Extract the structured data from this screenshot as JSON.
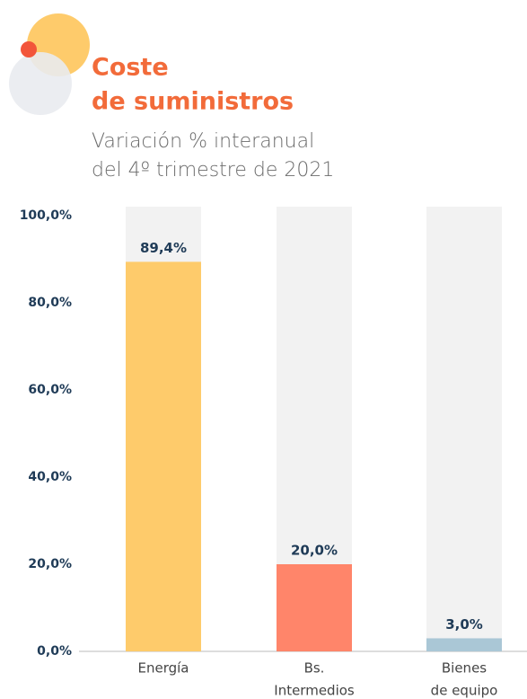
{
  "chart_data": {
    "type": "bar",
    "title": [
      "Coste",
      "de suministros"
    ],
    "subtitle": [
      "Variación % interanual",
      "del 4º trimestre de 2021"
    ],
    "categories": [
      [
        "Energía"
      ],
      [
        "Bs.",
        "Intermedios"
      ],
      [
        "Bienes",
        "de equipo"
      ]
    ],
    "values": [
      89.4,
      20.0,
      3.0
    ],
    "value_labels": [
      "89,4%",
      "20,0%",
      "3,0%"
    ],
    "colors": [
      "#fecb6b",
      "#ff856a",
      "#aac7d6"
    ],
    "ylim": [
      0,
      100
    ],
    "yticks": [
      {
        "value": 0,
        "label": "0,0%"
      },
      {
        "value": 20,
        "label": "20,0%"
      },
      {
        "value": 40,
        "label": "40,0%"
      },
      {
        "value": 60,
        "label": "60,0%"
      },
      {
        "value": 80,
        "label": "80,0%"
      },
      {
        "value": 100,
        "label": "100,0%"
      }
    ]
  }
}
